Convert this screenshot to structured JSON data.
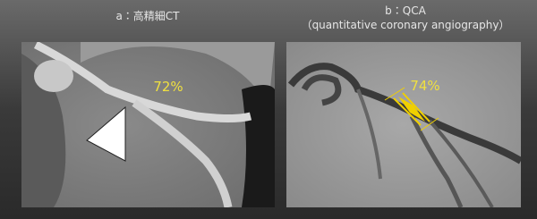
{
  "panels": [
    {
      "title": "a：高精細CT",
      "annotation": "72%"
    },
    {
      "title": "b：QCA",
      "subtitle": "（quantitative coronary angiography）",
      "annotation": "74%"
    }
  ]
}
